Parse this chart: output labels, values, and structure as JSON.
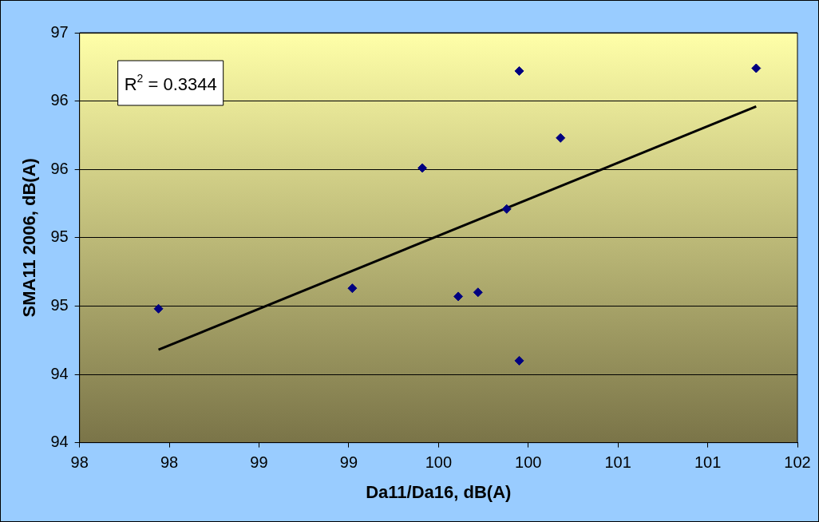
{
  "chart_data": {
    "type": "scatter",
    "xlabel": "Da11/Da16, dB(A)",
    "ylabel": "SMA11 2006, dB(A)",
    "xlim": [
      98,
      102
    ],
    "ylim": [
      94,
      97
    ],
    "xticks": [
      98,
      {
        "value": 98.5,
        "label": "98"
      },
      99,
      {
        "value": 99.5,
        "label": "99"
      },
      100,
      {
        "value": 100.5,
        "label": "100"
      },
      101,
      {
        "value": 101.5,
        "label": "101"
      },
      102
    ],
    "yticks": [
      94,
      {
        "value": 94.5,
        "label": "94"
      },
      95,
      {
        "value": 95.5,
        "label": "95"
      },
      96,
      {
        "value": 96.5,
        "label": "96"
      },
      97
    ],
    "grid": "y",
    "legend": false,
    "marker": "diamond",
    "annotations": [
      "R$^{2}$ = 0.3344"
    ],
    "series": [
      {
        "color": "#000080",
        "x": [
          98.44,
          99.52,
          99.91,
          100.11,
          100.22,
          100.38,
          100.45,
          100.45,
          100.68,
          101.77
        ],
        "values": [
          94.98,
          95.13,
          96.01,
          95.07,
          95.1,
          95.71,
          94.6,
          96.72,
          96.23,
          96.74
        ]
      },
      {
        "type": "line",
        "color": "#000000",
        "marker": "none",
        "x": [
          98.44,
          101.77
        ],
        "values": [
          94.68,
          96.46
        ]
      }
    ]
  }
}
